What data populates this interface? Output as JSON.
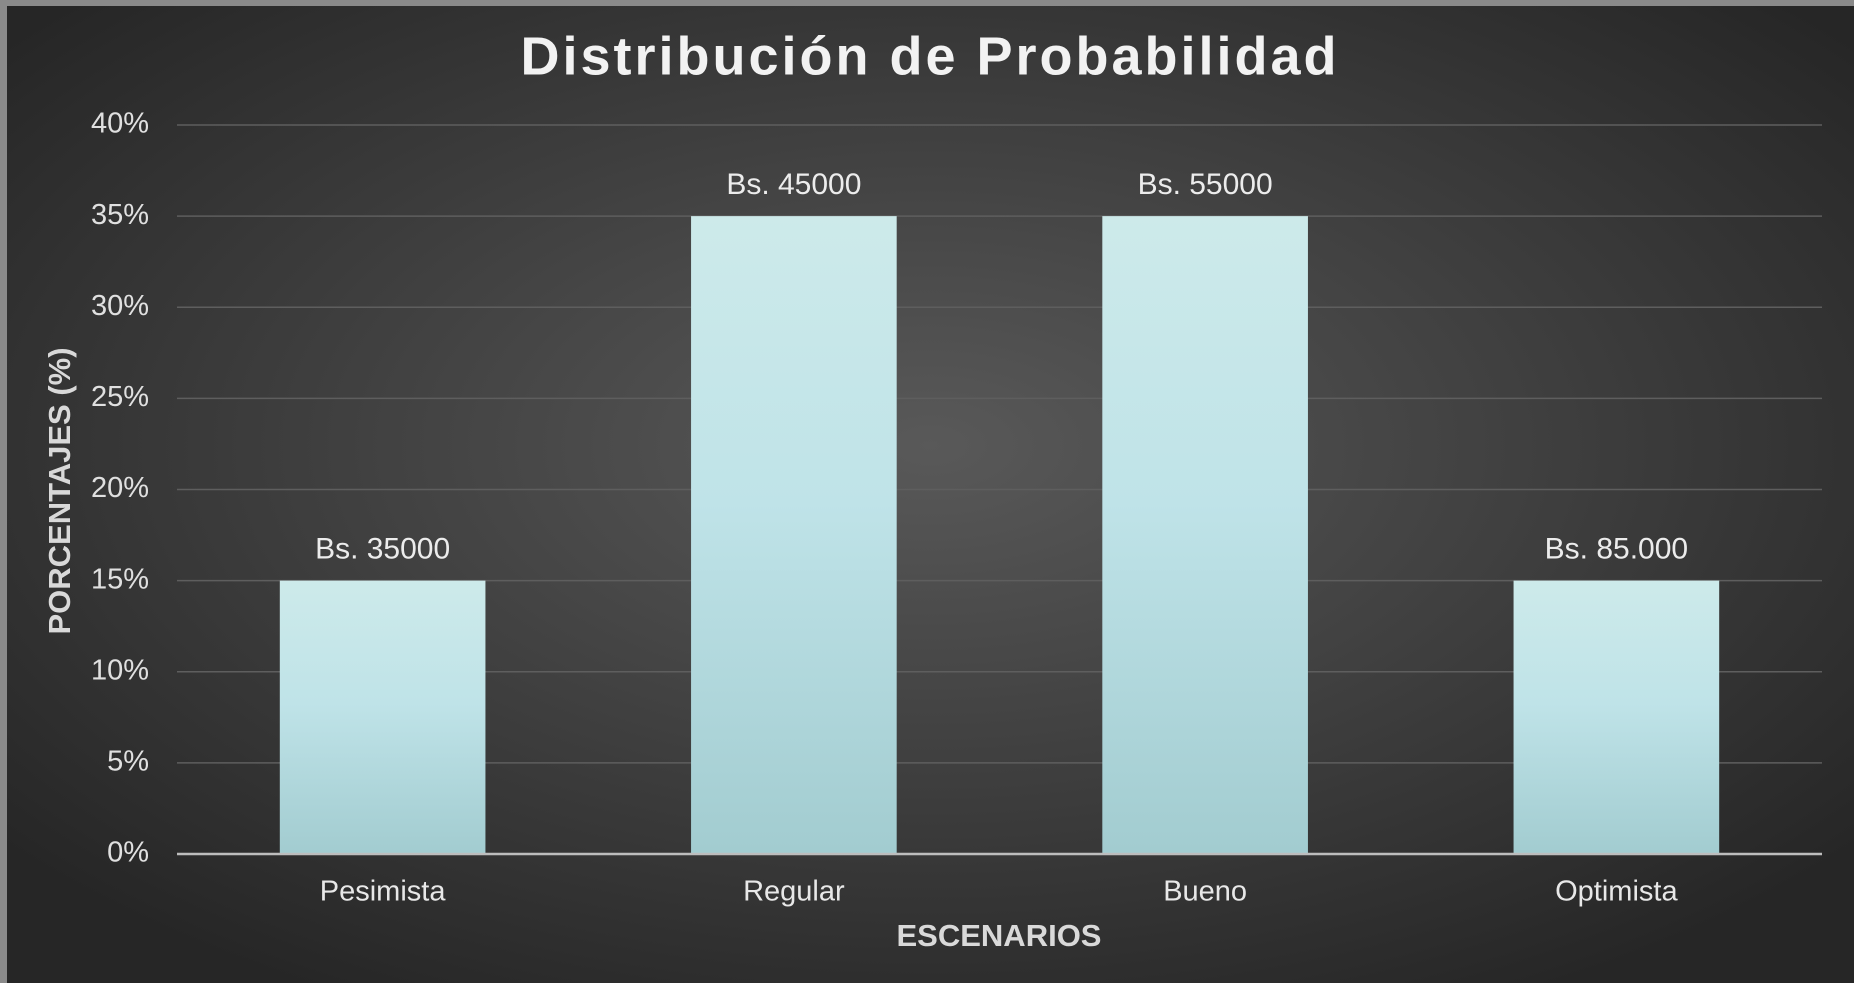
{
  "chart_data": {
    "type": "bar",
    "title": "Distribución de Probabilidad",
    "categories": [
      "Pesimista",
      "Regular",
      "Bueno",
      "Optimista"
    ],
    "values": [
      15,
      35,
      35,
      15
    ],
    "annotations": [
      "Bs. 35000",
      "Bs. 45000",
      "Bs. 55000",
      "Bs. 85.000"
    ],
    "x_label": "ESCENARIOS",
    "y_label": "PORCENTAJES  (%)",
    "ylim": [
      0,
      40
    ],
    "yticks": [
      {
        "value": 0,
        "label": "0%"
      },
      {
        "value": 5,
        "label": "5%"
      },
      {
        "value": 10,
        "label": "10%"
      },
      {
        "value": 15,
        "label": "15%"
      },
      {
        "value": 20,
        "label": "20%"
      },
      {
        "value": 25,
        "label": "25%"
      },
      {
        "value": 30,
        "label": "30%"
      },
      {
        "value": 35,
        "label": "35%"
      },
      {
        "value": 40,
        "label": "40%"
      }
    ],
    "grid": true,
    "color": "#bfe3e6"
  }
}
